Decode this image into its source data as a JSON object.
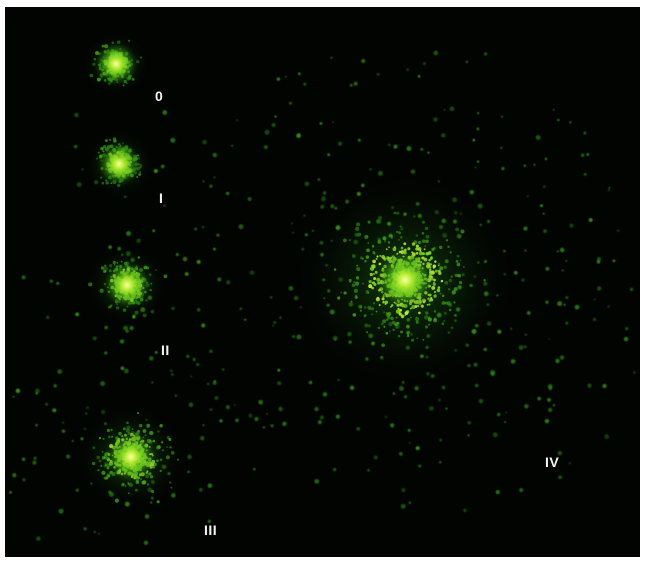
{
  "labels": {
    "grade_0": "0",
    "grade_1": "I",
    "grade_2": "II",
    "grade_3": "III",
    "grade_4": "IV"
  },
  "colors": {
    "background": "#020402",
    "border": "#ffffff",
    "fluorescence_core": "#f4ff8a",
    "fluorescence_mid": "#7fdc1c",
    "fluorescence_halo": "#1f7a10",
    "label_text": "#f4f4f4"
  }
}
